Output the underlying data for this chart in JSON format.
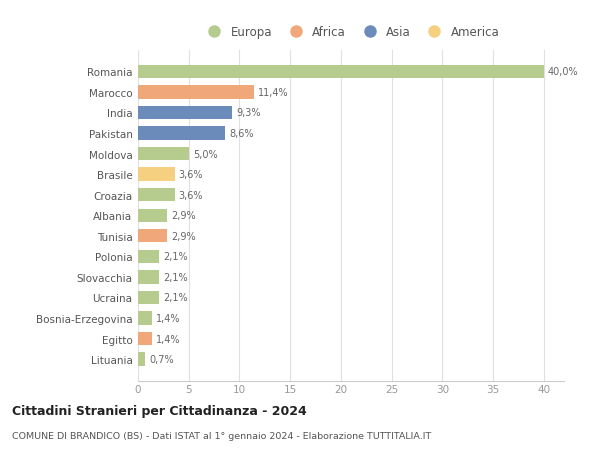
{
  "countries": [
    "Romania",
    "Marocco",
    "India",
    "Pakistan",
    "Moldova",
    "Brasile",
    "Croazia",
    "Albania",
    "Tunisia",
    "Polonia",
    "Slovacchia",
    "Ucraina",
    "Bosnia-Erzegovina",
    "Egitto",
    "Lituania"
  ],
  "values": [
    40.0,
    11.4,
    9.3,
    8.6,
    5.0,
    3.6,
    3.6,
    2.9,
    2.9,
    2.1,
    2.1,
    2.1,
    1.4,
    1.4,
    0.7
  ],
  "labels": [
    "40,0%",
    "11,4%",
    "9,3%",
    "8,6%",
    "5,0%",
    "3,6%",
    "3,6%",
    "2,9%",
    "2,9%",
    "2,1%",
    "2,1%",
    "2,1%",
    "1,4%",
    "1,4%",
    "0,7%"
  ],
  "continents": [
    "Europa",
    "Africa",
    "Asia",
    "Asia",
    "Europa",
    "America",
    "Europa",
    "Europa",
    "Africa",
    "Europa",
    "Europa",
    "Europa",
    "Europa",
    "Africa",
    "Europa"
  ],
  "colors": {
    "Europa": "#b5cc8e",
    "Africa": "#f0a87a",
    "Asia": "#6b8cba",
    "America": "#f5d080"
  },
  "title": "Cittadini Stranieri per Cittadinanza - 2024",
  "subtitle": "COMUNE DI BRANDICO (BS) - Dati ISTAT al 1° gennaio 2024 - Elaborazione TUTTITALIA.IT",
  "xlim": [
    0,
    42
  ],
  "xticks": [
    0,
    5,
    10,
    15,
    20,
    25,
    30,
    35,
    40
  ],
  "background_color": "#ffffff",
  "grid_color": "#e0e0e0",
  "bar_height": 0.65,
  "legend_order": [
    "Europa",
    "Africa",
    "Asia",
    "America"
  ]
}
